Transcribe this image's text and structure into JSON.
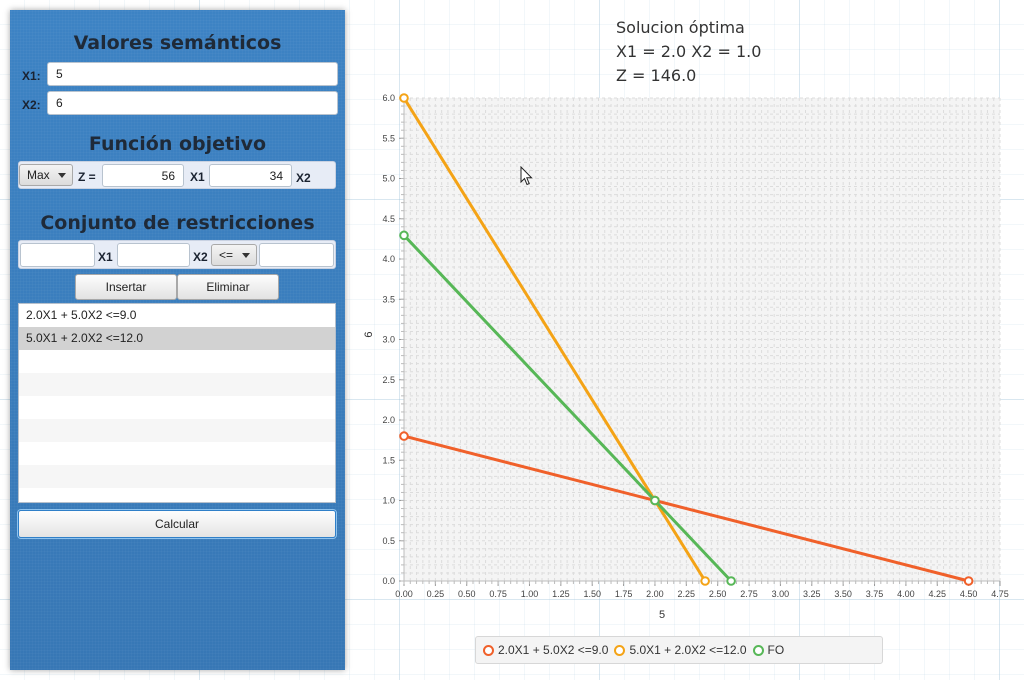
{
  "panel": {
    "semantic_title": "Valores semánticos",
    "x1_label": "X1:",
    "x1_value": "5",
    "x2_label": "X2:",
    "x2_value": "6",
    "objective_title": "Función objetivo",
    "objective_mode": "Max",
    "z_label": "Z =",
    "coef_x1": "56",
    "x1_tag": "X1",
    "coef_x2": "34",
    "x2_tag": "X2",
    "constraints_title": "Conjunto de restricciones",
    "constraint_x1_value": "",
    "constraint_x1_tag": "X1",
    "constraint_x2_value": "",
    "constraint_x2_tag": "X2",
    "operator": "<=",
    "rhs_value": "",
    "insert_label": "Insertar",
    "delete_label": "Eliminar",
    "constraints": [
      "2.0X1 + 5.0X2 <=9.0",
      "5.0X1 + 2.0X2 <=12.0"
    ],
    "selected_index": 1,
    "calculate_label": "Calcular"
  },
  "solution": {
    "line1": "Solucion óptima",
    "line2": "X1 = 2.0 X2 = 1.0",
    "line3": "Z = 146.0"
  },
  "colors": {
    "constraint1": "#f0602a",
    "constraint2": "#f4a316",
    "objective": "#57b757",
    "panel": "#3a7fbf"
  },
  "chart_data": {
    "type": "line",
    "xlabel": "5",
    "ylabel": "6",
    "xlim": [
      0,
      4.75
    ],
    "ylim": [
      0,
      6.0
    ],
    "xticks": [
      "0.00",
      "0.25",
      "0.50",
      "0.75",
      "1.00",
      "1.25",
      "1.50",
      "1.75",
      "2.00",
      "2.25",
      "2.50",
      "2.75",
      "3.00",
      "3.25",
      "3.50",
      "3.75",
      "4.00",
      "4.25",
      "4.50",
      "4.75"
    ],
    "yticks": [
      "0.0",
      "0.5",
      "1.0",
      "1.5",
      "2.0",
      "2.5",
      "3.0",
      "3.5",
      "4.0",
      "4.5",
      "5.0",
      "5.5",
      "6.0"
    ],
    "grid": true,
    "legend_position": "bottom",
    "series": [
      {
        "name": "2.0X1 + 5.0X2 <=9.0",
        "points": [
          [
            0,
            1.8
          ],
          [
            2.0,
            1.0
          ],
          [
            4.5,
            0
          ]
        ]
      },
      {
        "name": "5.0X1 + 2.0X2 <=12.0",
        "points": [
          [
            0,
            6.0
          ],
          [
            2.0,
            1.0
          ],
          [
            2.4,
            0
          ]
        ]
      },
      {
        "name": "FO",
        "points": [
          [
            0,
            4.294
          ],
          [
            2.0,
            1.0
          ],
          [
            2.607,
            0
          ]
        ]
      }
    ]
  }
}
